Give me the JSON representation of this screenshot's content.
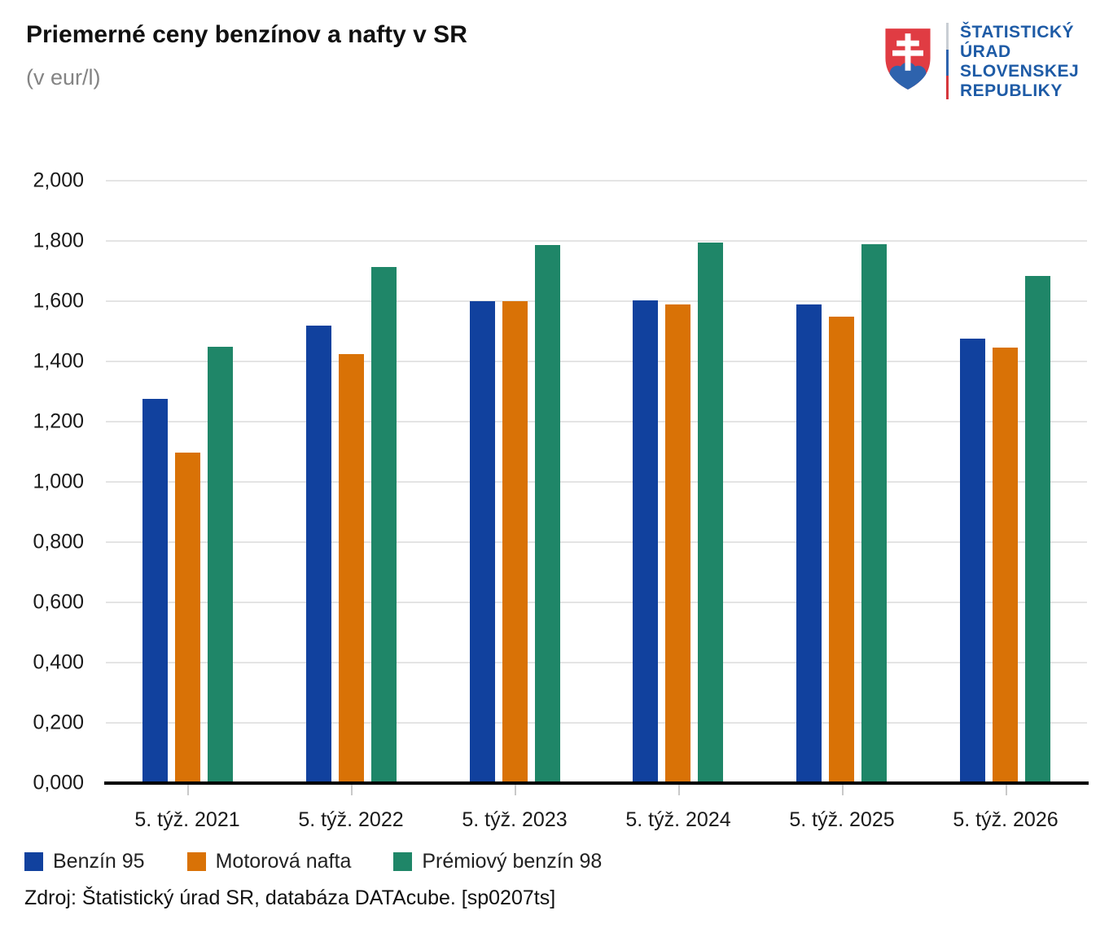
{
  "header": {
    "title": "Priemerné ceny benzínov a nafty v SR",
    "subtitle": "(v eur/l)",
    "logo": {
      "lines": [
        "ŠTATISTICKÝ",
        "ÚRAD",
        "SLOVENSKEJ",
        "REPUBLIKY"
      ],
      "text_color": "#1e5ba6",
      "arms_red": "#e03c43",
      "arms_blue": "#2e63ad"
    }
  },
  "chart_data": {
    "type": "bar",
    "title": "Priemerné ceny benzínov a nafty v SR",
    "subtitle": "(v eur/l)",
    "unit": "eur/l",
    "categories": [
      "5. týž. 2021",
      "5. týž. 2022",
      "5. týž. 2023",
      "5. týž. 2024",
      "5. týž. 2025",
      "5. týž. 2026"
    ],
    "series": [
      {
        "name": "Benzín 95",
        "color": "#11419e",
        "values": [
          1.277,
          1.519,
          1.599,
          1.604,
          1.588,
          1.476
        ]
      },
      {
        "name": "Motorová nafta",
        "color": "#d97206",
        "values": [
          1.097,
          1.424,
          1.601,
          1.589,
          1.549,
          1.447
        ]
      },
      {
        "name": "Prémiový benzín 98",
        "color": "#1f8668",
        "values": [
          1.448,
          1.713,
          1.787,
          1.795,
          1.788,
          1.684
        ]
      }
    ],
    "ylim": [
      0,
      2.0
    ],
    "ytick_step": 0.2,
    "ytick_labels": [
      "0,000",
      "0,200",
      "0,400",
      "0,600",
      "0,800",
      "1,000",
      "1,200",
      "1,400",
      "1,600",
      "1,800",
      "2,000"
    ],
    "xlabel": "",
    "ylabel": "",
    "grid": true,
    "legend_position": "bottom-left"
  },
  "footer": {
    "source": "Zdroj: Štatistický úrad SR, databáza DATAcube. [sp0207ts]"
  }
}
